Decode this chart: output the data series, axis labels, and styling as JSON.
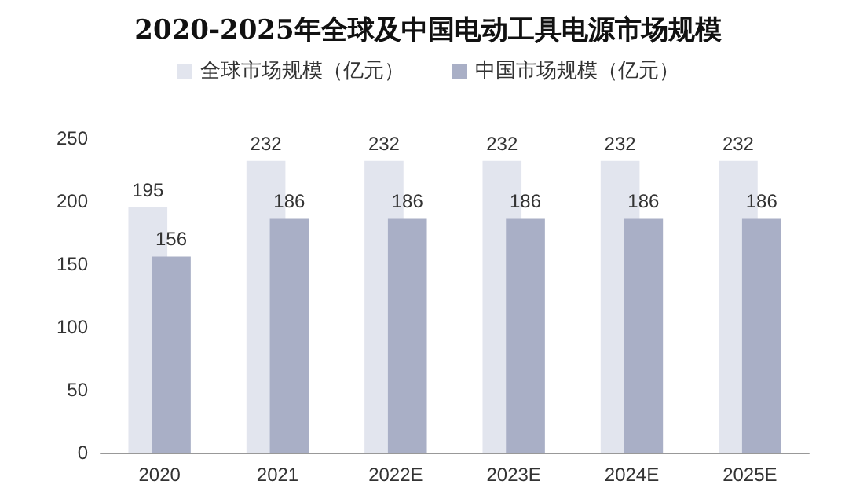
{
  "chart_data": {
    "type": "bar",
    "title": "2020-2025年全球及中国电动工具电源市场规模",
    "categories": [
      "2020",
      "2021",
      "2022E",
      "2023E",
      "2024E",
      "2025E"
    ],
    "series": [
      {
        "name": "全球市场规模（亿元）",
        "color": "#e2e5ee",
        "values": [
          195,
          232,
          232,
          232,
          232,
          232
        ]
      },
      {
        "name": "中国市场规模（亿元）",
        "color": "#a9afc6",
        "values": [
          156,
          186,
          186,
          186,
          186,
          186
        ]
      }
    ],
    "ylim": [
      0,
      250
    ],
    "yticks": [
      0,
      50,
      100,
      150,
      200,
      250
    ],
    "grid": false,
    "legend": "top",
    "data_labels": true
  }
}
